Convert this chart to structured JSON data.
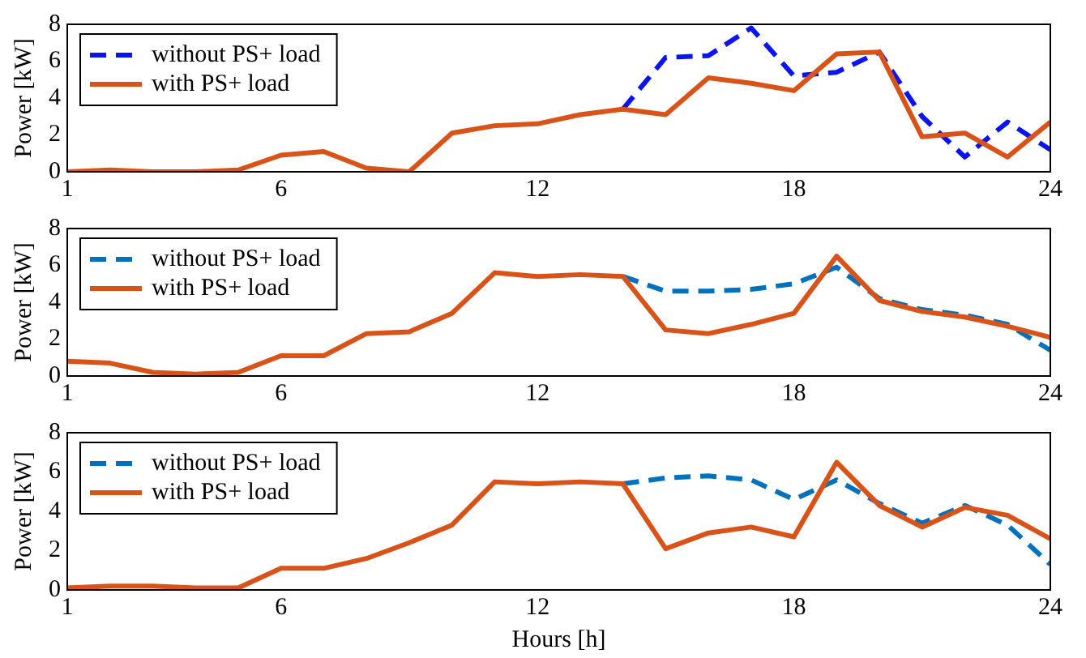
{
  "chart_data": [
    {
      "type": "line",
      "ylabel": "Power [kW]",
      "x": [
        1,
        2,
        3,
        4,
        5,
        6,
        7,
        8,
        9,
        10,
        11,
        12,
        13,
        14,
        15,
        16,
        17,
        18,
        19,
        20,
        21,
        22,
        23,
        24
      ],
      "xlim": [
        1,
        24
      ],
      "xticks": [
        1,
        6,
        12,
        18,
        24
      ],
      "ylim": [
        0,
        8
      ],
      "yticks": [
        0,
        2,
        4,
        6,
        8
      ],
      "legend": "top left",
      "series": [
        {
          "name": "without PS+ load",
          "color": "#0a14f0",
          "line_style": "dashed",
          "values": [
            null,
            null,
            null,
            null,
            null,
            null,
            null,
            null,
            null,
            null,
            null,
            null,
            null,
            3.4,
            6.2,
            6.3,
            7.8,
            5.2,
            5.4,
            6.5,
            3.0,
            0.8,
            2.7,
            1.2
          ]
        },
        {
          "name": "with PS+ load",
          "color": "#d95319",
          "line_style": "solid",
          "values": [
            0,
            0.1,
            0,
            0,
            0.1,
            0.9,
            1.1,
            0.2,
            0,
            2.1,
            2.5,
            2.6,
            3.1,
            3.4,
            3.1,
            5.1,
            4.8,
            4.4,
            6.4,
            6.5,
            1.9,
            2.1,
            0.8,
            2.7
          ]
        }
      ]
    },
    {
      "type": "line",
      "ylabel": "Power [kW]",
      "x": [
        1,
        2,
        3,
        4,
        5,
        6,
        7,
        8,
        9,
        10,
        11,
        12,
        13,
        14,
        15,
        16,
        17,
        18,
        19,
        20,
        21,
        22,
        23,
        24
      ],
      "xlim": [
        1,
        24
      ],
      "xticks": [
        1,
        6,
        12,
        18,
        24
      ],
      "ylim": [
        0,
        8
      ],
      "yticks": [
        0,
        2,
        4,
        6,
        8
      ],
      "legend": "top left",
      "series": [
        {
          "name": "without PS+ load",
          "color": "#0072bd",
          "line_style": "dashed",
          "values": [
            null,
            null,
            null,
            null,
            null,
            null,
            null,
            null,
            null,
            null,
            null,
            null,
            null,
            5.4,
            4.6,
            4.6,
            4.7,
            5.0,
            5.9,
            4.2,
            3.6,
            3.3,
            2.8,
            1.4
          ]
        },
        {
          "name": "with PS+ load",
          "color": "#d95319",
          "line_style": "solid",
          "values": [
            0.8,
            0.7,
            0.2,
            0.1,
            0.2,
            1.1,
            1.1,
            2.3,
            2.4,
            3.4,
            5.6,
            5.4,
            5.5,
            5.4,
            2.5,
            2.3,
            2.8,
            3.4,
            6.5,
            4.1,
            3.5,
            3.2,
            2.7,
            2.1
          ]
        }
      ]
    },
    {
      "type": "line",
      "ylabel": "Power [kW]",
      "xlabel": "Hours [h]",
      "x": [
        1,
        2,
        3,
        4,
        5,
        6,
        7,
        8,
        9,
        10,
        11,
        12,
        13,
        14,
        15,
        16,
        17,
        18,
        19,
        20,
        21,
        22,
        23,
        24
      ],
      "xlim": [
        1,
        24
      ],
      "xticks": [
        1,
        6,
        12,
        18,
        24
      ],
      "ylim": [
        0,
        8
      ],
      "yticks": [
        0,
        2,
        4,
        6,
        8
      ],
      "legend": "top left",
      "series": [
        {
          "name": "without PS+ load",
          "color": "#0072bd",
          "line_style": "dashed",
          "values": [
            null,
            null,
            null,
            null,
            null,
            null,
            null,
            null,
            null,
            null,
            null,
            null,
            null,
            5.4,
            5.7,
            5.8,
            5.6,
            4.6,
            5.6,
            4.4,
            3.4,
            4.3,
            3.3,
            1.3
          ]
        },
        {
          "name": "with PS+ load",
          "color": "#d95319",
          "line_style": "solid",
          "values": [
            0.1,
            0.2,
            0.2,
            0.1,
            0.1,
            1.1,
            1.1,
            1.6,
            2.4,
            3.3,
            5.5,
            5.4,
            5.5,
            5.4,
            2.1,
            2.9,
            3.2,
            2.7,
            6.5,
            4.3,
            3.2,
            4.2,
            3.8,
            2.6
          ]
        }
      ]
    }
  ]
}
